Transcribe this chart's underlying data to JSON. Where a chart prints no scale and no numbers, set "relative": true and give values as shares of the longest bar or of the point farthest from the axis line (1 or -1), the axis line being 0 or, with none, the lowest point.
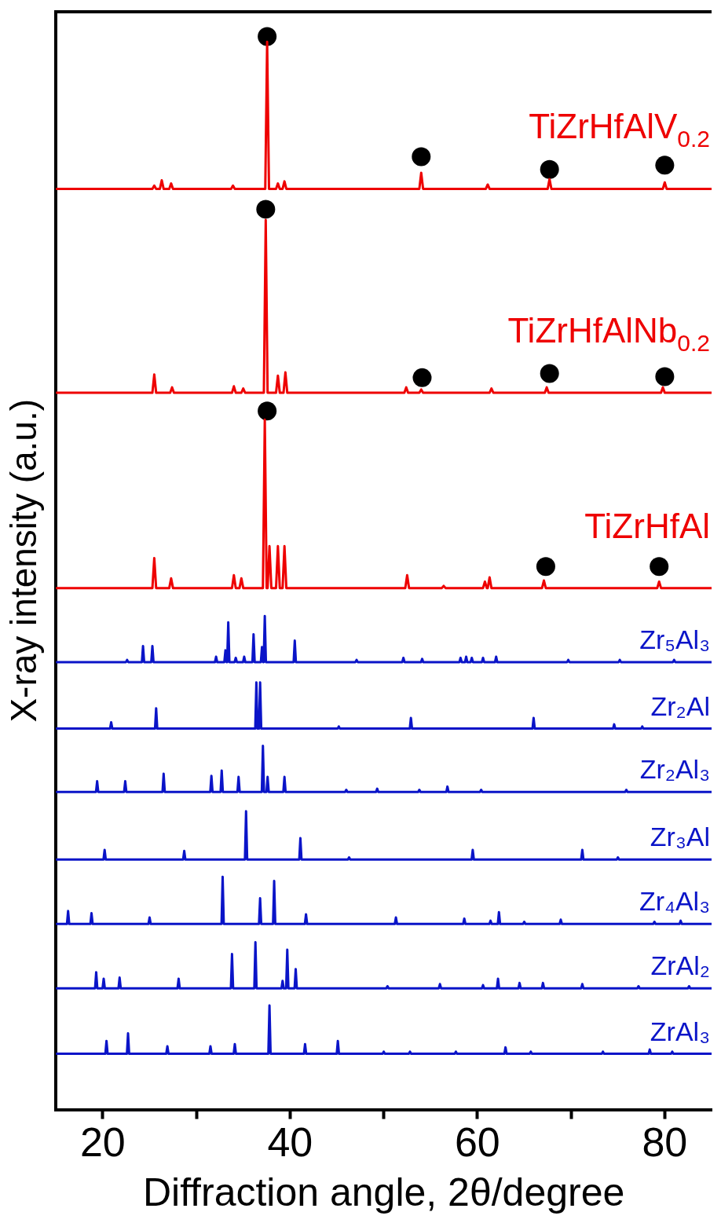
{
  "chart_data": {
    "type": "line",
    "relative": true,
    "xlabel": "Diffraction angle, 2θ/degree",
    "ylabel": "X-ray intensity (a.u.)",
    "xlim": [
      15,
      85
    ],
    "xticks": [
      20,
      {
        "value": 30,
        "label": null
      },
      40,
      {
        "value": 50,
        "label": null
      },
      60,
      {
        "value": 70,
        "label": null
      },
      80
    ],
    "marker": "none",
    "series": [
      {
        "name": "TiZrHfAlV$_{0.2}$",
        "color": "#ee0000",
        "x": [
          15,
          25.3,
          25.5,
          25.7,
          26.1,
          26.3,
          26.5,
          27.1,
          27.3,
          27.5,
          33.7,
          33.9,
          34.1,
          37.35,
          37.55,
          37.75,
          38.5,
          38.7,
          38.9,
          39.2,
          39.4,
          39.6,
          53.8,
          54.0,
          54.2,
          60.9,
          61.1,
          61.3,
          67.5,
          67.7,
          67.9,
          79.8,
          80.0,
          80.2,
          85
        ],
        "values": [
          0.858,
          0.858,
          0.861,
          0.858,
          0.858,
          0.866,
          0.858,
          0.858,
          0.863,
          0.858,
          0.858,
          0.861,
          0.858,
          0.858,
          0.995,
          0.858,
          0.858,
          0.863,
          0.858,
          0.858,
          0.865,
          0.858,
          0.858,
          0.873,
          0.858,
          0.858,
          0.862,
          0.858,
          0.858,
          0.867,
          0.858,
          0.858,
          0.864,
          0.858,
          0.858
        ]
      },
      {
        "name": "TiZrHfAlNb$_{0.2}$",
        "color": "#ee0000",
        "x": [
          15,
          25.3,
          25.5,
          25.7,
          27.2,
          27.4,
          27.6,
          33.8,
          34.0,
          34.2,
          34.8,
          35.0,
          35.2,
          37.2,
          37.4,
          37.6,
          38.5,
          38.7,
          38.9,
          39.3,
          39.5,
          39.7,
          52.2,
          52.4,
          52.6,
          53.8,
          54.0,
          54.2,
          61.3,
          61.5,
          61.7,
          67.2,
          67.4,
          67.6,
          79.6,
          79.8,
          80.0,
          85
        ],
        "values": [
          0.668,
          0.668,
          0.685,
          0.668,
          0.668,
          0.673,
          0.668,
          0.668,
          0.674,
          0.668,
          0.668,
          0.672,
          0.668,
          0.668,
          0.829,
          0.668,
          0.668,
          0.684,
          0.668,
          0.668,
          0.687,
          0.668,
          0.668,
          0.673,
          0.668,
          0.668,
          0.671,
          0.668,
          0.668,
          0.672,
          0.668,
          0.668,
          0.673,
          0.668,
          0.668,
          0.673,
          0.668,
          0.668
        ]
      },
      {
        "name": "TiZrHfAl",
        "color": "#ee0000",
        "x": [
          15,
          25.3,
          25.5,
          25.7,
          27.1,
          27.3,
          27.5,
          33.8,
          34.0,
          34.2,
          34.6,
          34.8,
          35.0,
          37.1,
          37.3,
          37.5,
          37.6,
          37.8,
          38.0,
          38.5,
          38.7,
          38.9,
          39.2,
          39.4,
          39.6,
          52.3,
          52.5,
          52.7,
          56.2,
          56.4,
          56.6,
          60.6,
          60.8,
          61.0,
          61.1,
          61.3,
          61.5,
          66.9,
          67.1,
          67.3,
          79.2,
          79.4,
          79.6,
          85
        ],
        "values": [
          0.486,
          0.486,
          0.514,
          0.486,
          0.486,
          0.495,
          0.486,
          0.486,
          0.498,
          0.486,
          0.486,
          0.495,
          0.486,
          0.486,
          0.643,
          0.486,
          0.486,
          0.525,
          0.486,
          0.486,
          0.525,
          0.486,
          0.486,
          0.525,
          0.486,
          0.486,
          0.498,
          0.486,
          0.486,
          0.488,
          0.486,
          0.486,
          0.492,
          0.486,
          0.486,
          0.496,
          0.486,
          0.486,
          0.493,
          0.486,
          0.486,
          0.492,
          0.486,
          0.486
        ]
      },
      {
        "name": "Zr₅Al₃",
        "color": "#0a14c8",
        "x": [
          15,
          22.48,
          22.6,
          22.72,
          24.18,
          24.3,
          24.42,
          25.18,
          25.3,
          25.42,
          31.98,
          32.1,
          32.22,
          32.98,
          33.1,
          33.22,
          33.28,
          33.4,
          33.52,
          34.08,
          34.2,
          34.32,
          34.98,
          35.1,
          35.22,
          35.98,
          36.1,
          36.22,
          36.88,
          37.0,
          37.12,
          37.18,
          37.3,
          37.42,
          40.38,
          40.5,
          40.62,
          46.98,
          47.1,
          47.22,
          51.98,
          52.1,
          52.22,
          53.98,
          54.1,
          54.22,
          58.08,
          58.2,
          58.32,
          58.68,
          58.8,
          58.92,
          59.28,
          59.4,
          59.52,
          60.48,
          60.6,
          60.72,
          61.88,
          62.0,
          62.12,
          69.58,
          69.7,
          69.82,
          75.08,
          75.2,
          75.32,
          80.88,
          81.0,
          81.12,
          85
        ],
        "values": [
          0.417,
          0.417,
          0.419,
          0.417,
          0.417,
          0.432,
          0.417,
          0.417,
          0.432,
          0.417,
          0.417,
          0.422,
          0.417,
          0.417,
          0.428,
          0.417,
          0.417,
          0.454,
          0.417,
          0.417,
          0.421,
          0.417,
          0.417,
          0.422,
          0.417,
          0.417,
          0.443,
          0.417,
          0.417,
          0.431,
          0.417,
          0.417,
          0.46,
          0.417,
          0.417,
          0.437,
          0.417,
          0.417,
          0.419,
          0.417,
          0.417,
          0.421,
          0.417,
          0.417,
          0.42,
          0.417,
          0.417,
          0.421,
          0.417,
          0.417,
          0.422,
          0.417,
          0.417,
          0.421,
          0.417,
          0.417,
          0.421,
          0.417,
          0.417,
          0.422,
          0.417,
          0.417,
          0.419,
          0.417,
          0.417,
          0.419,
          0.417,
          0.417,
          0.419,
          0.417,
          0.417
        ]
      },
      {
        "name": "Zr₂Al",
        "color": "#0a14c8",
        "x": [
          15,
          20.78,
          20.9,
          21.02,
          25.58,
          25.7,
          25.82,
          36.28,
          36.4,
          36.52,
          36.68,
          36.8,
          36.92,
          45.08,
          45.2,
          45.32,
          52.78,
          52.9,
          53.02,
          65.88,
          66.0,
          66.12,
          74.48,
          74.6,
          74.72,
          77.48,
          77.6,
          77.72,
          85
        ],
        "values": [
          0.355,
          0.355,
          0.361,
          0.355,
          0.355,
          0.374,
          0.355,
          0.355,
          0.398,
          0.355,
          0.355,
          0.398,
          0.355,
          0.355,
          0.357,
          0.355,
          0.355,
          0.365,
          0.355,
          0.355,
          0.365,
          0.355,
          0.355,
          0.359,
          0.355,
          0.355,
          0.357,
          0.355,
          0.355
        ]
      },
      {
        "name": "Zr₂Al₃",
        "color": "#0a14c8",
        "x": [
          15,
          19.28,
          19.4,
          19.52,
          22.28,
          22.4,
          22.52,
          26.38,
          26.5,
          26.62,
          31.48,
          31.6,
          31.72,
          32.58,
          32.7,
          32.82,
          34.38,
          34.5,
          34.62,
          36.98,
          37.1,
          37.22,
          37.48,
          37.6,
          37.72,
          39.28,
          39.4,
          39.52,
          45.88,
          46.0,
          46.12,
          49.18,
          49.3,
          49.42,
          53.68,
          53.8,
          53.92,
          56.68,
          56.8,
          56.92,
          60.28,
          60.4,
          60.52,
          75.78,
          75.9,
          76.02,
          85
        ],
        "values": [
          0.296,
          0.296,
          0.306,
          0.296,
          0.296,
          0.306,
          0.296,
          0.296,
          0.313,
          0.296,
          0.296,
          0.311,
          0.296,
          0.296,
          0.316,
          0.296,
          0.296,
          0.31,
          0.296,
          0.296,
          0.339,
          0.296,
          0.296,
          0.31,
          0.296,
          0.296,
          0.31,
          0.296,
          0.296,
          0.298,
          0.296,
          0.296,
          0.299,
          0.296,
          0.296,
          0.298,
          0.296,
          0.296,
          0.301,
          0.296,
          0.296,
          0.298,
          0.296,
          0.296,
          0.298,
          0.296,
          0.296
        ]
      },
      {
        "name": "Zr₃Al",
        "color": "#0a14c8",
        "x": [
          15,
          20.08,
          20.2,
          20.32,
          28.58,
          28.7,
          28.82,
          35.18,
          35.3,
          35.42,
          40.98,
          41.1,
          41.22,
          46.18,
          46.3,
          46.42,
          59.38,
          59.5,
          59.62,
          71.08,
          71.2,
          71.32,
          74.88,
          75.0,
          75.12,
          85
        ],
        "values": [
          0.233,
          0.233,
          0.242,
          0.233,
          0.233,
          0.241,
          0.233,
          0.233,
          0.278,
          0.233,
          0.233,
          0.253,
          0.233,
          0.233,
          0.235,
          0.233,
          0.233,
          0.242,
          0.233,
          0.233,
          0.242,
          0.233,
          0.233,
          0.235,
          0.233,
          0.233
        ]
      },
      {
        "name": "Zr₄Al₃",
        "color": "#0a14c8",
        "x": [
          15,
          16.18,
          16.3,
          16.42,
          18.68,
          18.8,
          18.92,
          24.88,
          25.0,
          25.12,
          32.68,
          32.8,
          32.92,
          36.68,
          36.8,
          36.92,
          38.18,
          38.3,
          38.42,
          41.58,
          41.7,
          41.82,
          51.18,
          51.3,
          51.42,
          58.48,
          58.6,
          58.72,
          61.28,
          61.4,
          61.52,
          62.18,
          62.3,
          62.42,
          64.88,
          65.0,
          65.12,
          68.78,
          68.9,
          69.02,
          78.78,
          78.9,
          79.02,
          81.58,
          81.7,
          81.82,
          85
        ],
        "values": [
          0.173,
          0.173,
          0.185,
          0.173,
          0.173,
          0.183,
          0.173,
          0.173,
          0.179,
          0.173,
          0.173,
          0.217,
          0.173,
          0.173,
          0.197,
          0.173,
          0.173,
          0.213,
          0.173,
          0.173,
          0.182,
          0.173,
          0.173,
          0.179,
          0.173,
          0.173,
          0.178,
          0.173,
          0.173,
          0.176,
          0.173,
          0.173,
          0.184,
          0.173,
          0.173,
          0.175,
          0.173,
          0.173,
          0.177,
          0.173,
          0.173,
          0.175,
          0.173,
          0.173,
          0.176,
          0.173,
          0.173
        ]
      },
      {
        "name": "ZrAl₂",
        "color": "#0a14c8",
        "x": [
          15,
          19.18,
          19.3,
          19.42,
          19.98,
          20.1,
          20.22,
          21.68,
          21.8,
          21.92,
          27.98,
          28.1,
          28.22,
          33.68,
          33.8,
          33.92,
          36.18,
          36.3,
          36.42,
          39.08,
          39.2,
          39.32,
          39.58,
          39.7,
          39.82,
          40.48,
          40.6,
          40.72,
          50.28,
          50.4,
          50.52,
          55.88,
          56.0,
          56.12,
          60.48,
          60.6,
          60.72,
          62.08,
          62.2,
          62.32,
          64.38,
          64.5,
          64.62,
          66.88,
          67.0,
          67.12,
          71.08,
          71.2,
          71.32,
          77.08,
          77.2,
          77.32,
          82.48,
          82.6,
          82.72,
          85
        ],
        "values": [
          0.113,
          0.113,
          0.128,
          0.113,
          0.113,
          0.122,
          0.113,
          0.113,
          0.123,
          0.113,
          0.113,
          0.122,
          0.113,
          0.113,
          0.145,
          0.113,
          0.113,
          0.156,
          0.113,
          0.113,
          0.12,
          0.113,
          0.113,
          0.149,
          0.113,
          0.113,
          0.131,
          0.113,
          0.113,
          0.115,
          0.113,
          0.113,
          0.117,
          0.113,
          0.113,
          0.116,
          0.113,
          0.113,
          0.122,
          0.113,
          0.113,
          0.118,
          0.113,
          0.113,
          0.118,
          0.113,
          0.113,
          0.117,
          0.113,
          0.113,
          0.115,
          0.113,
          0.113,
          0.115,
          0.113,
          0.113
        ]
      },
      {
        "name": "ZrAl₃",
        "color": "#0a14c8",
        "x": [
          15,
          20.28,
          20.4,
          20.52,
          22.58,
          22.7,
          22.82,
          26.78,
          26.9,
          27.02,
          31.38,
          31.5,
          31.62,
          33.98,
          34.1,
          34.22,
          37.68,
          37.8,
          37.92,
          41.48,
          41.6,
          41.72,
          44.98,
          45.1,
          45.22,
          49.88,
          50.0,
          50.12,
          52.68,
          52.8,
          52.92,
          57.58,
          57.7,
          57.82,
          62.88,
          63.0,
          63.12,
          65.58,
          65.7,
          65.82,
          73.28,
          73.4,
          73.52,
          78.28,
          78.4,
          78.52,
          80.68,
          80.8,
          80.92,
          85
        ],
        "values": [
          0.052,
          0.052,
          0.064,
          0.052,
          0.052,
          0.071,
          0.052,
          0.052,
          0.059,
          0.052,
          0.052,
          0.059,
          0.052,
          0.052,
          0.061,
          0.052,
          0.052,
          0.097,
          0.052,
          0.052,
          0.061,
          0.052,
          0.052,
          0.064,
          0.052,
          0.052,
          0.054,
          0.052,
          0.052,
          0.054,
          0.052,
          0.052,
          0.054,
          0.052,
          0.052,
          0.058,
          0.052,
          0.052,
          0.054,
          0.052,
          0.052,
          0.054,
          0.052,
          0.052,
          0.056,
          0.052,
          0.052,
          0.054,
          0.052,
          0.052
        ]
      },
      {
        "type": "scatter",
        "marker": "circle",
        "color": "#000000",
        "x": [
          37.55,
          54.0,
          67.7,
          80.0,
          37.4,
          54.1,
          67.7,
          80.0,
          37.55,
          67.3,
          79.4
        ],
        "values": [
          1.0,
          0.888,
          0.876,
          0.88,
          0.839,
          0.682,
          0.686,
          0.683,
          0.651,
          0.506,
          0.506
        ]
      }
    ]
  }
}
